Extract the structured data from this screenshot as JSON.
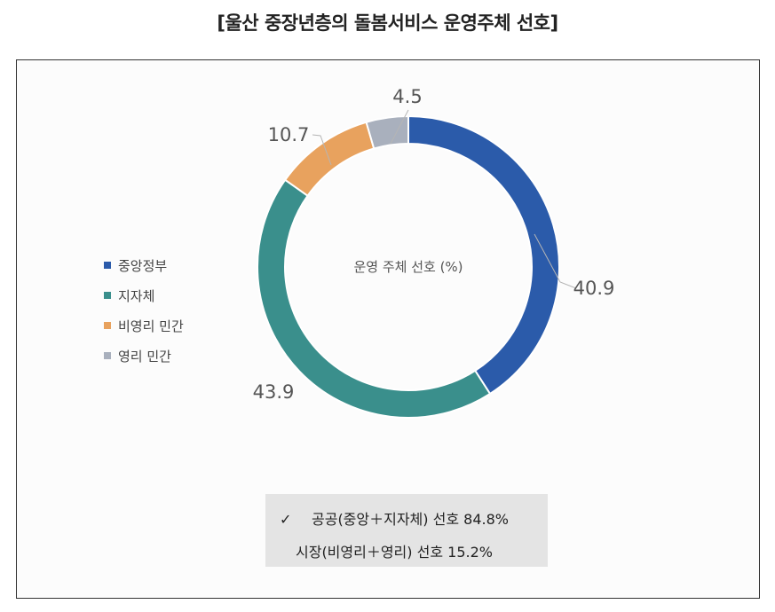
{
  "title": "[울산 중장년층의 돌봄서비스 운영주체 선호]",
  "chart_data": {
    "type": "pie",
    "donut": true,
    "center_label": "운영 주체 선호 (%)",
    "categories": [
      "중앙정부",
      "지자체",
      "비영리 민간",
      "영리 민간"
    ],
    "values": [
      40.9,
      43.9,
      10.7,
      4.5
    ],
    "value_labels": [
      "40.9",
      "43.9",
      "10.7",
      "4.5"
    ],
    "colors": [
      "#2b5baa",
      "#3a8f8c",
      "#e8a25e",
      "#a9b0bd"
    ],
    "legend_position": "left"
  },
  "summary": {
    "check_icon": "✓",
    "line1": "공공(중앙＋지자체) 선호 84.8%",
    "line2": "시장(비영리＋영리) 선호 15.2%"
  }
}
